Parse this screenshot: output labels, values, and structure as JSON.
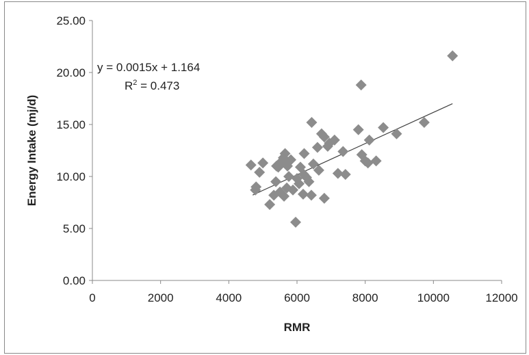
{
  "chart_data": {
    "type": "scatter",
    "xlabel": "RMR",
    "ylabel": "Energy Intake (mj/d)",
    "xlim": [
      0,
      12000
    ],
    "ylim": [
      0,
      25
    ],
    "x_ticks": [
      "0",
      "2000",
      "4000",
      "6000",
      "8000",
      "10000",
      "12000"
    ],
    "y_ticks": [
      "0.00",
      "5.00",
      "10.00",
      "15.00",
      "20.00",
      "25.00"
    ],
    "grid": false,
    "legend": "none",
    "marker": "diamond",
    "marker_color": "#8c8c8c",
    "trendline": {
      "slope": 0.0015,
      "intercept": 1.164,
      "x_range": [
        4700,
        10560
      ],
      "equation_label": "y = 0.0015x + 1.164",
      "r2_label_prefix": "R",
      "r2_label_sup": "2",
      "r2_label_suffix": " = 0.473"
    },
    "points": [
      {
        "x": 4650,
        "y": 11.1
      },
      {
        "x": 4780,
        "y": 8.7
      },
      {
        "x": 4800,
        "y": 9.0
      },
      {
        "x": 4900,
        "y": 10.4
      },
      {
        "x": 5000,
        "y": 11.3
      },
      {
        "x": 5200,
        "y": 7.3
      },
      {
        "x": 5320,
        "y": 8.2
      },
      {
        "x": 5380,
        "y": 9.5
      },
      {
        "x": 5400,
        "y": 11.0
      },
      {
        "x": 5450,
        "y": 10.9
      },
      {
        "x": 5500,
        "y": 8.5
      },
      {
        "x": 5560,
        "y": 11.5
      },
      {
        "x": 5600,
        "y": 11.8
      },
      {
        "x": 5620,
        "y": 8.1
      },
      {
        "x": 5650,
        "y": 12.2
      },
      {
        "x": 5700,
        "y": 8.9
      },
      {
        "x": 5720,
        "y": 11.0
      },
      {
        "x": 5760,
        "y": 10.0
      },
      {
        "x": 5820,
        "y": 11.6
      },
      {
        "x": 5880,
        "y": 8.7
      },
      {
        "x": 5960,
        "y": 5.6
      },
      {
        "x": 6000,
        "y": 9.8
      },
      {
        "x": 6060,
        "y": 9.3
      },
      {
        "x": 6100,
        "y": 10.9
      },
      {
        "x": 6180,
        "y": 8.3
      },
      {
        "x": 6200,
        "y": 10.2
      },
      {
        "x": 6210,
        "y": 12.2
      },
      {
        "x": 6280,
        "y": 9.9
      },
      {
        "x": 6350,
        "y": 9.5
      },
      {
        "x": 6420,
        "y": 8.2
      },
      {
        "x": 6430,
        "y": 15.2
      },
      {
        "x": 6480,
        "y": 11.2
      },
      {
        "x": 6600,
        "y": 12.8
      },
      {
        "x": 6640,
        "y": 10.6
      },
      {
        "x": 6720,
        "y": 14.1
      },
      {
        "x": 6800,
        "y": 7.9
      },
      {
        "x": 6800,
        "y": 13.8
      },
      {
        "x": 6900,
        "y": 12.9
      },
      {
        "x": 6950,
        "y": 13.2
      },
      {
        "x": 7100,
        "y": 13.5
      },
      {
        "x": 7200,
        "y": 10.3
      },
      {
        "x": 7350,
        "y": 12.4
      },
      {
        "x": 7420,
        "y": 10.2
      },
      {
        "x": 7800,
        "y": 14.5
      },
      {
        "x": 7880,
        "y": 18.8
      },
      {
        "x": 7900,
        "y": 12.1
      },
      {
        "x": 8000,
        "y": 11.5
      },
      {
        "x": 8080,
        "y": 11.3
      },
      {
        "x": 8120,
        "y": 13.5
      },
      {
        "x": 8320,
        "y": 11.5
      },
      {
        "x": 8530,
        "y": 14.7
      },
      {
        "x": 8920,
        "y": 14.1
      },
      {
        "x": 9730,
        "y": 15.2
      },
      {
        "x": 10560,
        "y": 21.6
      }
    ]
  }
}
